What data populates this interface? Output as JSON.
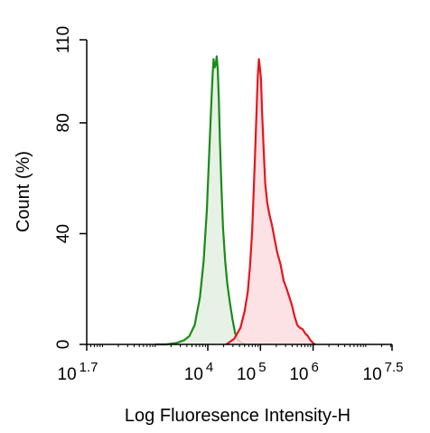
{
  "chart_data": {
    "type": "area",
    "title": "",
    "xlabel": "Log Fluoresence Intensity-H",
    "ylabel": "Count  (%)",
    "x_scale": "log10",
    "xlim_log10": [
      1.7,
      7.5
    ],
    "ylim": [
      0,
      110
    ],
    "y_ticks": [
      0,
      40,
      80,
      110
    ],
    "x_ticks": [
      {
        "base": "10",
        "exp": "1.7",
        "log10": 1.7
      },
      {
        "base": "10",
        "exp": "4",
        "log10": 4
      },
      {
        "base": "10",
        "exp": "5",
        "log10": 5
      },
      {
        "base": "10",
        "exp": "6",
        "log10": 6
      },
      {
        "base": "10",
        "exp": "7.5",
        "log10": 7.5
      }
    ],
    "grid": false,
    "legend": "none",
    "series": [
      {
        "color": "#1a8a1a",
        "fill": "#e3efe0",
        "log10_x": [
          3.0,
          3.2,
          3.4,
          3.55,
          3.65,
          3.75,
          3.85,
          3.92,
          3.98,
          4.02,
          4.06,
          4.09,
          4.11,
          4.13,
          4.15,
          4.17,
          4.19,
          4.21,
          4.23,
          4.26,
          4.29,
          4.33,
          4.37,
          4.42,
          4.47,
          4.52,
          4.58,
          4.65,
          4.72
        ],
        "values": [
          0,
          0,
          0.5,
          1.5,
          3,
          7,
          17,
          30,
          48,
          66,
          84,
          97,
          103,
          100,
          101,
          104,
          99,
          88,
          74,
          56,
          42,
          30,
          22,
          15,
          9,
          4,
          1.5,
          0.5,
          0
        ]
      },
      {
        "color": "#e8141c",
        "fill": "#fbdde0",
        "log10_x": [
          4.35,
          4.5,
          4.62,
          4.7,
          4.76,
          4.8,
          4.84,
          4.87,
          4.9,
          4.93,
          4.95,
          4.97,
          4.99,
          5.01,
          5.03,
          5.06,
          5.09,
          5.13,
          5.17,
          5.22,
          5.27,
          5.32,
          5.38,
          5.44,
          5.5,
          5.55,
          5.6,
          5.65,
          5.7,
          5.75,
          5.8,
          5.85,
          5.9,
          5.95,
          6.0,
          6.04
        ],
        "values": [
          0,
          2,
          6,
          12,
          19,
          28,
          40,
          54,
          70,
          86,
          97,
          103,
          100,
          96,
          84,
          71,
          58,
          51,
          47,
          43,
          38,
          33,
          29,
          23,
          20,
          17,
          14,
          10,
          7,
          6,
          5.5,
          4,
          3,
          1.5,
          0.5,
          0
        ]
      }
    ]
  }
}
